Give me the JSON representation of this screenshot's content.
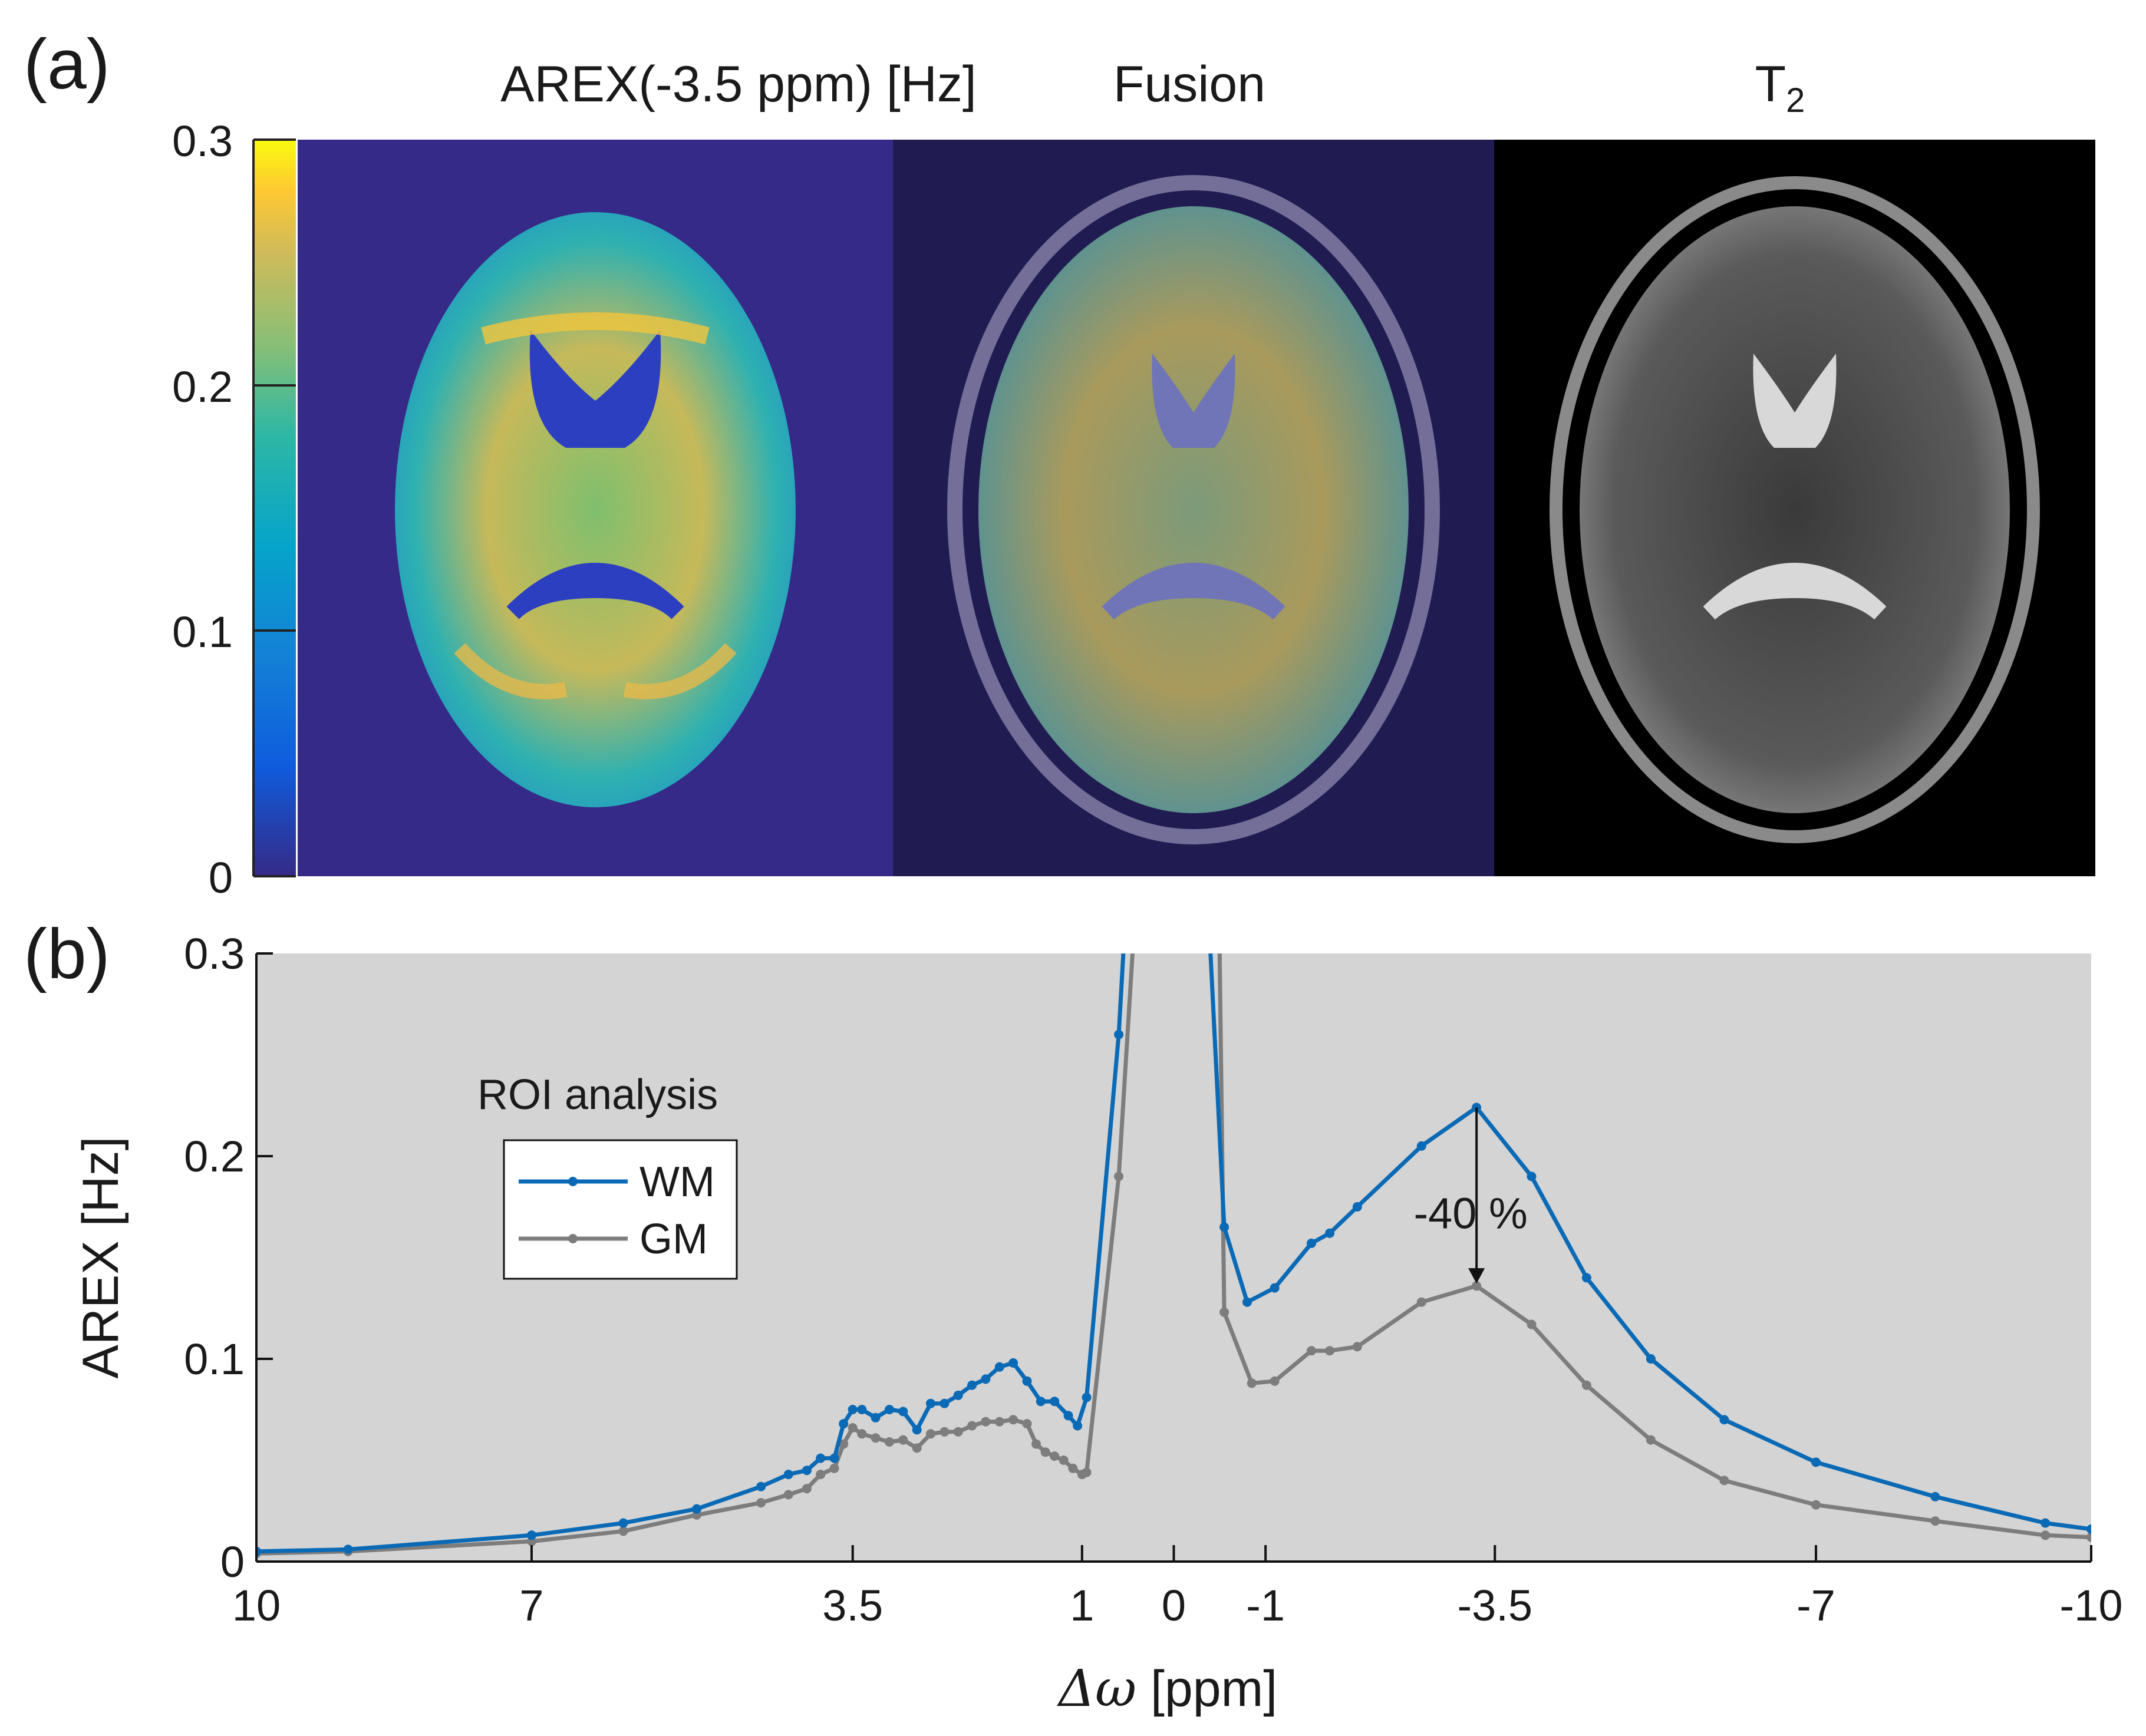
{
  "panel_a": {
    "label": "(a)",
    "titles": {
      "arex": "AREX(-3.5 ppm) [Hz]",
      "fusion": "Fusion",
      "t2_base": "T",
      "t2_sub": "2"
    },
    "colorbar": {
      "ticks": [
        "0.3",
        "0.2",
        "0.1",
        "0"
      ],
      "min": 0,
      "max": 0.3
    }
  },
  "panel_b": {
    "label": "(b)",
    "annotation": "-40 %",
    "legend_title": "ROI analysis"
  },
  "chart_data": {
    "type": "line",
    "xlabel_symbol": "Δω",
    "xlabel_unit": " [ppm]",
    "ylabel": "AREX [Hz]",
    "xlim": [
      10,
      -10
    ],
    "ylim": [
      0,
      0.3
    ],
    "xticks": [
      {
        "value": 10,
        "label": "10"
      },
      {
        "value": 7,
        "label": "7"
      },
      {
        "value": 3.5,
        "label": "3.5"
      },
      {
        "value": 1,
        "label": "1"
      },
      {
        "value": 0,
        "label": "0"
      },
      {
        "value": -1,
        "label": "-1"
      },
      {
        "value": -3.5,
        "label": "-3.5"
      },
      {
        "value": -7,
        "label": "-7"
      },
      {
        "value": -10,
        "label": "-10"
      }
    ],
    "yticks": [
      {
        "value": 0.3,
        "label": "0.3"
      },
      {
        "value": 0.2,
        "label": "0.2"
      },
      {
        "value": 0.1,
        "label": "0.1"
      },
      {
        "value": 0,
        "label": "0"
      }
    ],
    "series": [
      {
        "name": "WM",
        "color": "#0a6ab6",
        "points": [
          [
            10,
            0.005
          ],
          [
            9,
            0.006
          ],
          [
            7,
            0.013
          ],
          [
            6,
            0.019
          ],
          [
            5.2,
            0.026
          ],
          [
            4.5,
            0.037
          ],
          [
            4.2,
            0.043
          ],
          [
            4,
            0.045
          ],
          [
            3.85,
            0.051
          ],
          [
            3.7,
            0.051
          ],
          [
            3.6,
            0.068
          ],
          [
            3.5,
            0.075
          ],
          [
            3.4,
            0.075
          ],
          [
            3.25,
            0.071
          ],
          [
            3.1,
            0.075
          ],
          [
            2.95,
            0.074
          ],
          [
            2.8,
            0.065
          ],
          [
            2.65,
            0.078
          ],
          [
            2.5,
            0.078
          ],
          [
            2.35,
            0.082
          ],
          [
            2.2,
            0.087
          ],
          [
            2.05,
            0.09
          ],
          [
            1.9,
            0.096
          ],
          [
            1.75,
            0.098
          ],
          [
            1.6,
            0.089
          ],
          [
            1.45,
            0.079
          ],
          [
            1.3,
            0.079
          ],
          [
            1.15,
            0.072
          ],
          [
            1.05,
            0.067
          ],
          [
            0.95,
            0.081
          ],
          [
            0.6,
            0.26
          ],
          [
            0.55,
            0.3
          ]
        ],
        "points_right": [
          [
            -0.4,
            0.3
          ],
          [
            -0.55,
            0.165
          ],
          [
            -0.8,
            0.128
          ],
          [
            -1.1,
            0.135
          ],
          [
            -1.5,
            0.157
          ],
          [
            -1.7,
            0.162
          ],
          [
            -2,
            0.175
          ],
          [
            -2.7,
            0.205
          ],
          [
            -3.3,
            0.224
          ],
          [
            -3.9,
            0.19
          ],
          [
            -4.5,
            0.14
          ],
          [
            -5.2,
            0.1
          ],
          [
            -6,
            0.07
          ],
          [
            -7,
            0.049
          ],
          [
            -8.3,
            0.032
          ],
          [
            -9.5,
            0.019
          ],
          [
            -10,
            0.016
          ]
        ]
      },
      {
        "name": "GM",
        "color": "#7d7d7d",
        "points": [
          [
            10,
            0.004
          ],
          [
            9,
            0.005
          ],
          [
            7,
            0.01
          ],
          [
            6,
            0.015
          ],
          [
            5.2,
            0.023
          ],
          [
            4.5,
            0.029
          ],
          [
            4.2,
            0.033
          ],
          [
            4,
            0.036
          ],
          [
            3.85,
            0.043
          ],
          [
            3.7,
            0.046
          ],
          [
            3.6,
            0.058
          ],
          [
            3.5,
            0.066
          ],
          [
            3.4,
            0.063
          ],
          [
            3.25,
            0.061
          ],
          [
            3.1,
            0.059
          ],
          [
            2.95,
            0.06
          ],
          [
            2.8,
            0.056
          ],
          [
            2.65,
            0.063
          ],
          [
            2.5,
            0.064
          ],
          [
            2.35,
            0.064
          ],
          [
            2.2,
            0.067
          ],
          [
            2.05,
            0.069
          ],
          [
            1.9,
            0.069
          ],
          [
            1.75,
            0.07
          ],
          [
            1.6,
            0.068
          ],
          [
            1.5,
            0.058
          ],
          [
            1.4,
            0.054
          ],
          [
            1.3,
            0.052
          ],
          [
            1.2,
            0.05
          ],
          [
            1.1,
            0.046
          ],
          [
            1,
            0.043
          ],
          [
            0.95,
            0.044
          ],
          [
            0.6,
            0.19
          ],
          [
            0.45,
            0.3
          ]
        ],
        "points_right": [
          [
            -0.5,
            0.3
          ],
          [
            -0.55,
            0.123
          ],
          [
            -0.85,
            0.088
          ],
          [
            -1.1,
            0.089
          ],
          [
            -1.5,
            0.104
          ],
          [
            -1.7,
            0.104
          ],
          [
            -2,
            0.106
          ],
          [
            -2.7,
            0.128
          ],
          [
            -3.3,
            0.136
          ],
          [
            -3.9,
            0.117
          ],
          [
            -4.5,
            0.087
          ],
          [
            -5.2,
            0.06
          ],
          [
            -6,
            0.04
          ],
          [
            -7,
            0.028
          ],
          [
            -8.3,
            0.02
          ],
          [
            -9.5,
            0.013
          ],
          [
            -10,
            0.012
          ]
        ]
      }
    ]
  }
}
